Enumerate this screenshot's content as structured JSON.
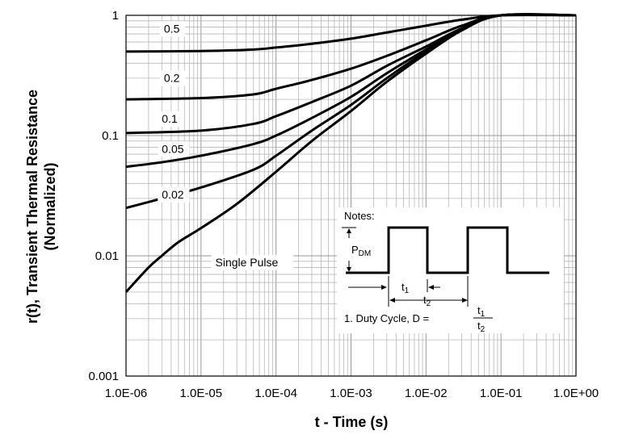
{
  "chart_data": {
    "type": "line",
    "xlabel": "t - Time (s)",
    "ylabel_line1": "r(t), Transient Thermal Resistance",
    "ylabel_line2": "(Normalized)",
    "xscale": "log",
    "yscale": "log",
    "xlim": [
      1e-06,
      1
    ],
    "ylim": [
      0.001,
      1
    ],
    "grid": true,
    "x_ticks": [
      {
        "value": 1e-06,
        "label": "1.0E-06"
      },
      {
        "value": 1e-05,
        "label": "1.0E-05"
      },
      {
        "value": 0.0001,
        "label": "1.0E-04"
      },
      {
        "value": 0.001,
        "label": "1.0E-03"
      },
      {
        "value": 0.01,
        "label": "1.0E-02"
      },
      {
        "value": 0.1,
        "label": "1.0E-01"
      },
      {
        "value": 1,
        "label": "1.0E+00"
      }
    ],
    "y_ticks": [
      {
        "value": 0.001,
        "label": "0.001"
      },
      {
        "value": 0.01,
        "label": "0.01"
      },
      {
        "value": 0.1,
        "label": "0.1"
      },
      {
        "value": 1,
        "label": "1"
      }
    ],
    "series": [
      {
        "name": "0.5",
        "points": [
          [
            1e-06,
            0.5
          ],
          [
            1e-05,
            0.505
          ],
          [
            5e-05,
            0.52
          ],
          [
            0.0001,
            0.54
          ],
          [
            0.0003,
            0.58
          ],
          [
            0.001,
            0.64
          ],
          [
            0.003,
            0.72
          ],
          [
            0.01,
            0.82
          ],
          [
            0.03,
            0.92
          ],
          [
            0.1,
            1.0
          ],
          [
            1,
            1.0
          ]
        ]
      },
      {
        "name": "0.2",
        "points": [
          [
            1e-06,
            0.2
          ],
          [
            1e-05,
            0.205
          ],
          [
            5e-05,
            0.22
          ],
          [
            0.0001,
            0.245
          ],
          [
            0.0003,
            0.29
          ],
          [
            0.001,
            0.36
          ],
          [
            0.003,
            0.46
          ],
          [
            0.01,
            0.62
          ],
          [
            0.03,
            0.82
          ],
          [
            0.1,
            1.0
          ],
          [
            1,
            1.0
          ]
        ]
      },
      {
        "name": "0.1",
        "points": [
          [
            1e-06,
            0.105
          ],
          [
            1e-05,
            0.11
          ],
          [
            5e-05,
            0.125
          ],
          [
            0.0001,
            0.145
          ],
          [
            0.0003,
            0.19
          ],
          [
            0.001,
            0.26
          ],
          [
            0.003,
            0.38
          ],
          [
            0.01,
            0.55
          ],
          [
            0.03,
            0.78
          ],
          [
            0.1,
            1.0
          ],
          [
            1,
            1.0
          ]
        ]
      },
      {
        "name": "0.05",
        "points": [
          [
            1e-06,
            0.055
          ],
          [
            3e-06,
            0.06
          ],
          [
            1e-05,
            0.068
          ],
          [
            5e-05,
            0.085
          ],
          [
            0.0001,
            0.1
          ],
          [
            0.0003,
            0.14
          ],
          [
            0.001,
            0.21
          ],
          [
            0.003,
            0.33
          ],
          [
            0.01,
            0.52
          ],
          [
            0.03,
            0.77
          ],
          [
            0.1,
            1.0
          ],
          [
            1,
            1.0
          ]
        ]
      },
      {
        "name": "0.02",
        "points": [
          [
            1e-06,
            0.025
          ],
          [
            3e-06,
            0.03
          ],
          [
            1e-05,
            0.037
          ],
          [
            5e-05,
            0.052
          ],
          [
            0.0001,
            0.068
          ],
          [
            0.0003,
            0.11
          ],
          [
            0.001,
            0.18
          ],
          [
            0.003,
            0.3
          ],
          [
            0.01,
            0.5
          ],
          [
            0.03,
            0.76
          ],
          [
            0.1,
            1.0
          ],
          [
            1,
            1.0
          ]
        ]
      },
      {
        "name": "Single Pulse",
        "points": [
          [
            1e-06,
            0.005
          ],
          [
            2e-06,
            0.008
          ],
          [
            3e-06,
            0.01
          ],
          [
            5e-06,
            0.013
          ],
          [
            1e-05,
            0.017
          ],
          [
            3e-05,
            0.027
          ],
          [
            0.0001,
            0.05
          ],
          [
            0.0003,
            0.09
          ],
          [
            0.001,
            0.16
          ],
          [
            0.003,
            0.28
          ],
          [
            0.01,
            0.48
          ],
          [
            0.03,
            0.75
          ],
          [
            0.1,
            1.0
          ],
          [
            1,
            1.0
          ]
        ]
      }
    ],
    "curve_labels": [
      {
        "text": "0.5",
        "x": 3.2e-06,
        "y": 0.72
      },
      {
        "text": "0.2",
        "x": 3.2e-06,
        "y": 0.28
      },
      {
        "text": "0.1",
        "x": 3e-06,
        "y": 0.128
      },
      {
        "text": "0.05",
        "x": 3e-06,
        "y": 0.072
      },
      {
        "text": "0.02",
        "x": 3e-06,
        "y": 0.03
      },
      {
        "text": "Single Pulse",
        "x": 1.55e-05,
        "y": 0.0082
      }
    ],
    "notes": {
      "title": "Notes:",
      "pdm_main": "P",
      "pdm_sub": "DM",
      "t1_main": "t",
      "t1_sub": "1",
      "t2_main": "t",
      "t2_sub": "2",
      "duty_text": "1. Duty Cycle, D =",
      "frac_num_main": "t",
      "frac_num_sub": "1",
      "frac_den_main": "t",
      "frac_den_sub": "2"
    }
  }
}
